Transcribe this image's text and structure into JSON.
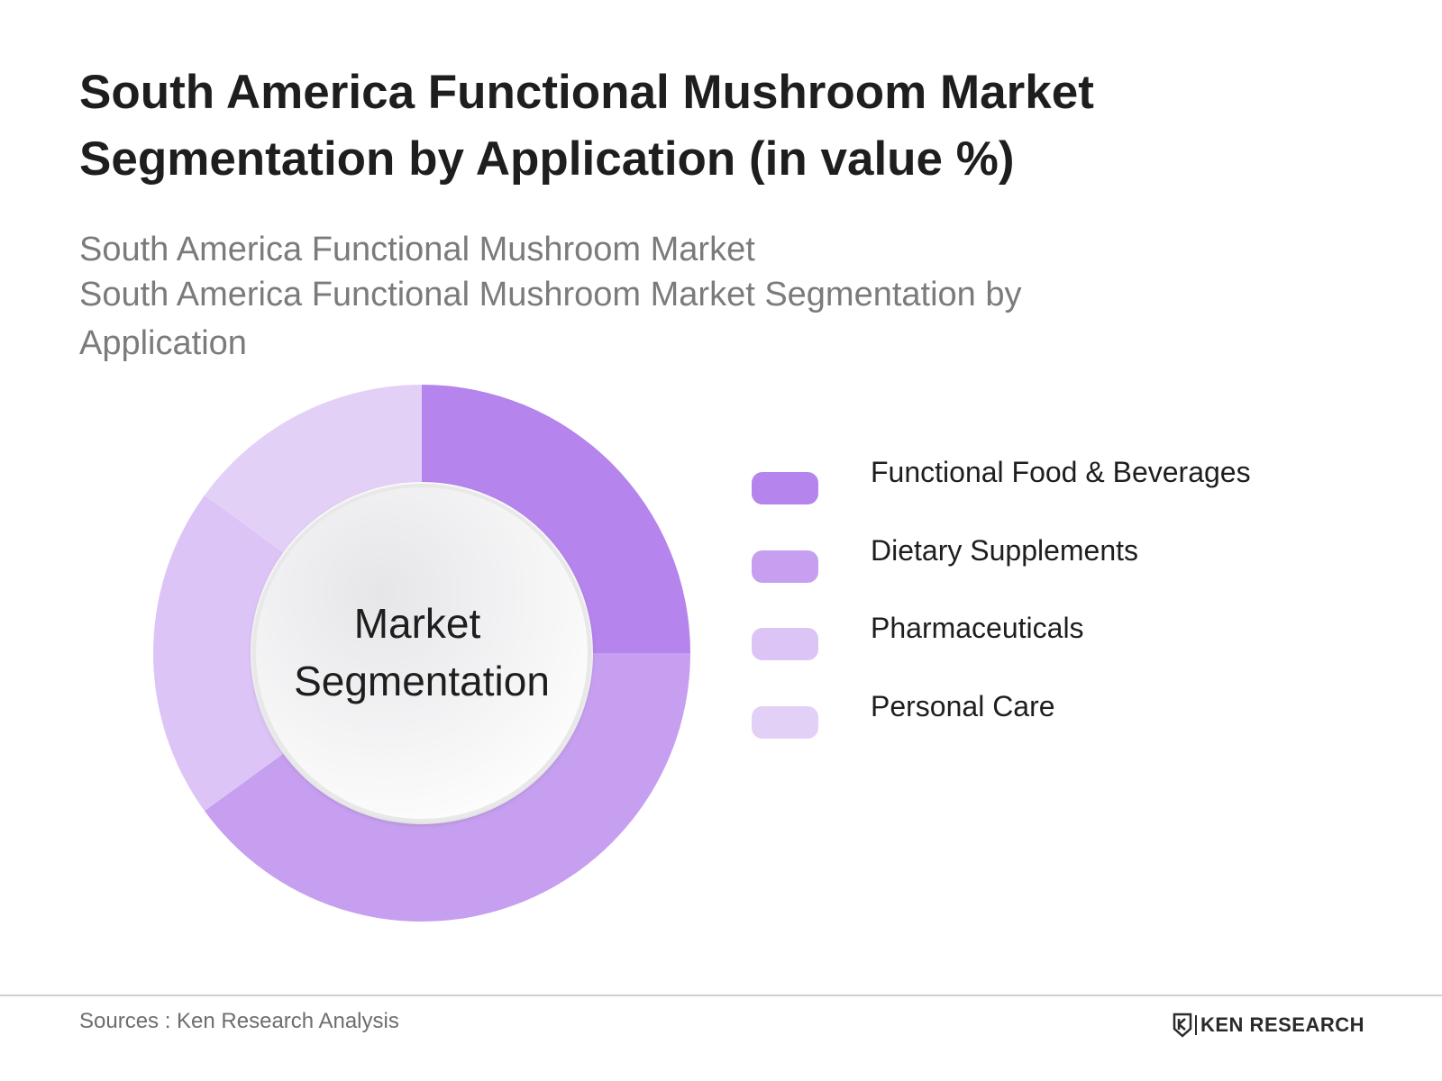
{
  "title": "South America Functional Mushroom Market Segmentation by Application (in value %)",
  "subtitle_line1": "South America Functional Mushroom Market",
  "subtitle_line2": "South America Functional Mushroom Market Segmentation by Application",
  "center_label_line1": "Market",
  "center_label_line2": "Segmentation",
  "footer": {
    "sources": "Sources : Ken Research Analysis",
    "brand": "KEN RESEARCH"
  },
  "chart_data": {
    "type": "pie",
    "variant": "donut",
    "categories": [
      "Functional Food & Beverages",
      "Dietary Supplements",
      "Pharmaceuticals",
      "Personal Care"
    ],
    "values": [
      25,
      40,
      20,
      15
    ],
    "colors": [
      "#b584ec",
      "#c79ff0",
      "#dcc5f6",
      "#e3d0f7"
    ],
    "start": "12 o'clock, clockwise",
    "legend_position": "right"
  }
}
